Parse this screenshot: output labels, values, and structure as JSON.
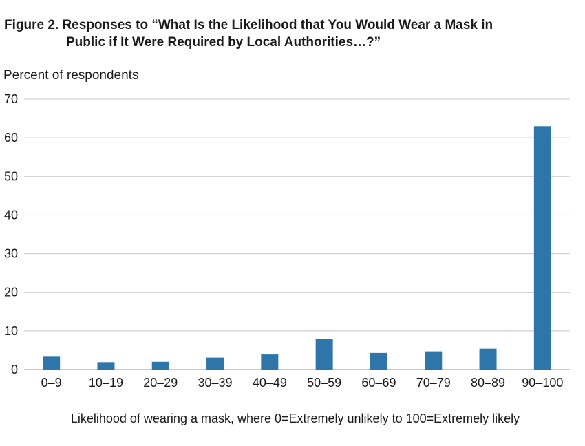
{
  "chart_data": {
    "type": "bar",
    "title_line1": "Figure 2. Responses to “What Is the Likelihood that You Would Wear a Mask in",
    "title_line2": "Public if It Were Required by Local Authorities…?”",
    "ylabel": "Percent of respondents",
    "xlabel": "Likelihood of wearing a mask, where 0=Extremely unlikely to 100=Extremely likely",
    "categories": [
      "0–9",
      "10–19",
      "20–29",
      "30–39",
      "40–49",
      "50–59",
      "60–69",
      "70–79",
      "80–89",
      "90–100"
    ],
    "values": [
      3.5,
      1.9,
      2.0,
      3.1,
      3.9,
      8.0,
      4.3,
      4.7,
      5.4,
      63.0
    ],
    "ylim": [
      0,
      70
    ],
    "yticks": [
      0,
      10,
      20,
      30,
      40,
      50,
      60,
      70
    ],
    "grid": true,
    "legend": "none",
    "bar_color": "#2e75aa",
    "grid_color": "#c8c8c8"
  }
}
